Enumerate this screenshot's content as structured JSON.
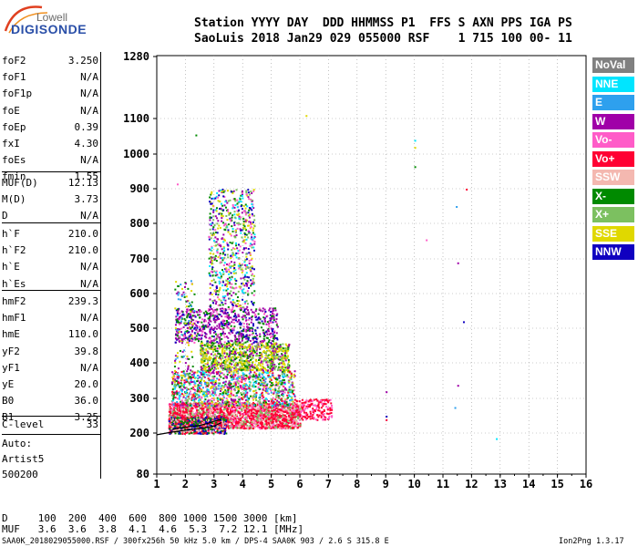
{
  "logo": {
    "line1": "Lowell",
    "line2": "DIGISONDE"
  },
  "header": {
    "line1": "Station YYYY DAY  DDD HHMMSS P1  FFS S AXN PPS IGA PS",
    "line2": "SaoLuis 2018 Jan29 029 055000 RSF    1 715 100 00- 11"
  },
  "params_group1": [
    {
      "name": "foF2",
      "value": "3.250"
    },
    {
      "name": "foF1",
      "value": "N/A"
    },
    {
      "name": "foF1p",
      "value": "N/A"
    },
    {
      "name": "foE",
      "value": "N/A"
    },
    {
      "name": "foEp",
      "value": "0.39"
    },
    {
      "name": "fxI",
      "value": "4.30"
    },
    {
      "name": "foEs",
      "value": "N/A"
    },
    {
      "name": "fmin",
      "value": "1.55"
    }
  ],
  "params_group2": [
    {
      "name": "MUF(D)",
      "value": "12.13"
    },
    {
      "name": "M(D)",
      "value": "3.73"
    },
    {
      "name": "D",
      "value": "N/A"
    }
  ],
  "params_group3": [
    {
      "name": "h`F",
      "value": "210.0"
    },
    {
      "name": "h`F2",
      "value": "210.0"
    },
    {
      "name": "h`E",
      "value": "N/A"
    },
    {
      "name": "h`Es",
      "value": "N/A"
    }
  ],
  "params_group4": [
    {
      "name": "hmF2",
      "value": "239.3"
    },
    {
      "name": "hmF1",
      "value": "N/A"
    },
    {
      "name": "hmE",
      "value": "110.0"
    },
    {
      "name": "yF2",
      "value": "39.8"
    },
    {
      "name": "yF1",
      "value": "N/A"
    },
    {
      "name": "yE",
      "value": "20.0"
    },
    {
      "name": "B0",
      "value": "36.0"
    },
    {
      "name": "B1",
      "value": "3.25"
    }
  ],
  "clevel": {
    "name": "C-level",
    "value": "33"
  },
  "autoscale": {
    "line1": "Auto:",
    "line2": "Artist5",
    "line3": "500200"
  },
  "legend": [
    {
      "label": "NoVal",
      "color": "#808080"
    },
    {
      "label": "NNE",
      "color": "#00e5ff"
    },
    {
      "label": "E",
      "color": "#2ea0ee"
    },
    {
      "label": "W",
      "color": "#a000a8"
    },
    {
      "label": "Vo-",
      "color": "#ff5cc8"
    },
    {
      "label": "Vo+",
      "color": "#ff0033"
    },
    {
      "label": "SSW",
      "color": "#f4b8b0"
    },
    {
      "label": "X-",
      "color": "#008a00"
    },
    {
      "label": "X+",
      "color": "#7cc060"
    },
    {
      "label": "SSE",
      "color": "#e0d800"
    },
    {
      "label": "NNW",
      "color": "#1000c0"
    }
  ],
  "distance_table": {
    "d_row": "D     100  200  400  600  800 1000 1500 3000 [km]",
    "muf_row": "MUF   3.6  3.6  3.8  4.1  4.6  5.3  7.2 12.1 [MHz]"
  },
  "footer": {
    "left": "SAA0K_2018029055000.RSF / 300fx256h 50 kHz 5.0 km / DPS-4 SAA0K 903 / 2.6 S 315.8 E",
    "right": "Ion2Png 1.3.17"
  },
  "chart_data": {
    "type": "scatter",
    "title": "",
    "xlabel": "",
    "ylabel": "",
    "xlim": [
      1,
      16
    ],
    "ylim": [
      80,
      1280
    ],
    "x_ticks": [
      "1",
      "2",
      "3",
      "4",
      "5",
      "6",
      "7",
      "8",
      "9",
      "10",
      "11",
      "12",
      "13",
      "14",
      "15",
      "16"
    ],
    "y_ticks": [
      "80",
      "200",
      "300",
      "400",
      "500",
      "600",
      "700",
      "800",
      "900",
      "1000",
      "1100",
      "1280"
    ],
    "y_scale": "nonlinear (ionogram virtual height)",
    "grid": true,
    "traces": [
      {
        "name": "F-trace O",
        "x": [
          1.55,
          1.8,
          2.1,
          2.5,
          2.8,
          3.0,
          3.25
        ],
        "y": [
          210,
          215,
          218,
          222,
          228,
          234,
          239
        ]
      },
      {
        "name": "fit line",
        "x": [
          1.0,
          1.55,
          2.0,
          2.5,
          3.0,
          3.25
        ],
        "y": [
          195,
          203,
          208,
          213,
          220,
          230
        ]
      }
    ],
    "isolated_points": [
      {
        "x": 9.0,
        "y": 320
      },
      {
        "x": 9.0,
        "y": 250
      },
      {
        "x": 9.0,
        "y": 240
      },
      {
        "x": 10.0,
        "y": 1040
      },
      {
        "x": 10.0,
        "y": 1020
      },
      {
        "x": 10.0,
        "y": 965
      },
      {
        "x": 10.4,
        "y": 755
      },
      {
        "x": 11.45,
        "y": 850
      },
      {
        "x": 11.5,
        "y": 690
      },
      {
        "x": 11.7,
        "y": 520
      },
      {
        "x": 11.8,
        "y": 900
      },
      {
        "x": 12.85,
        "y": 185
      },
      {
        "x": 6.2,
        "y": 1110
      },
      {
        "x": 2.35,
        "y": 1055
      },
      {
        "x": 1.7,
        "y": 915
      },
      {
        "x": 11.4,
        "y": 275
      },
      {
        "x": 11.5,
        "y": 338
      }
    ]
  }
}
